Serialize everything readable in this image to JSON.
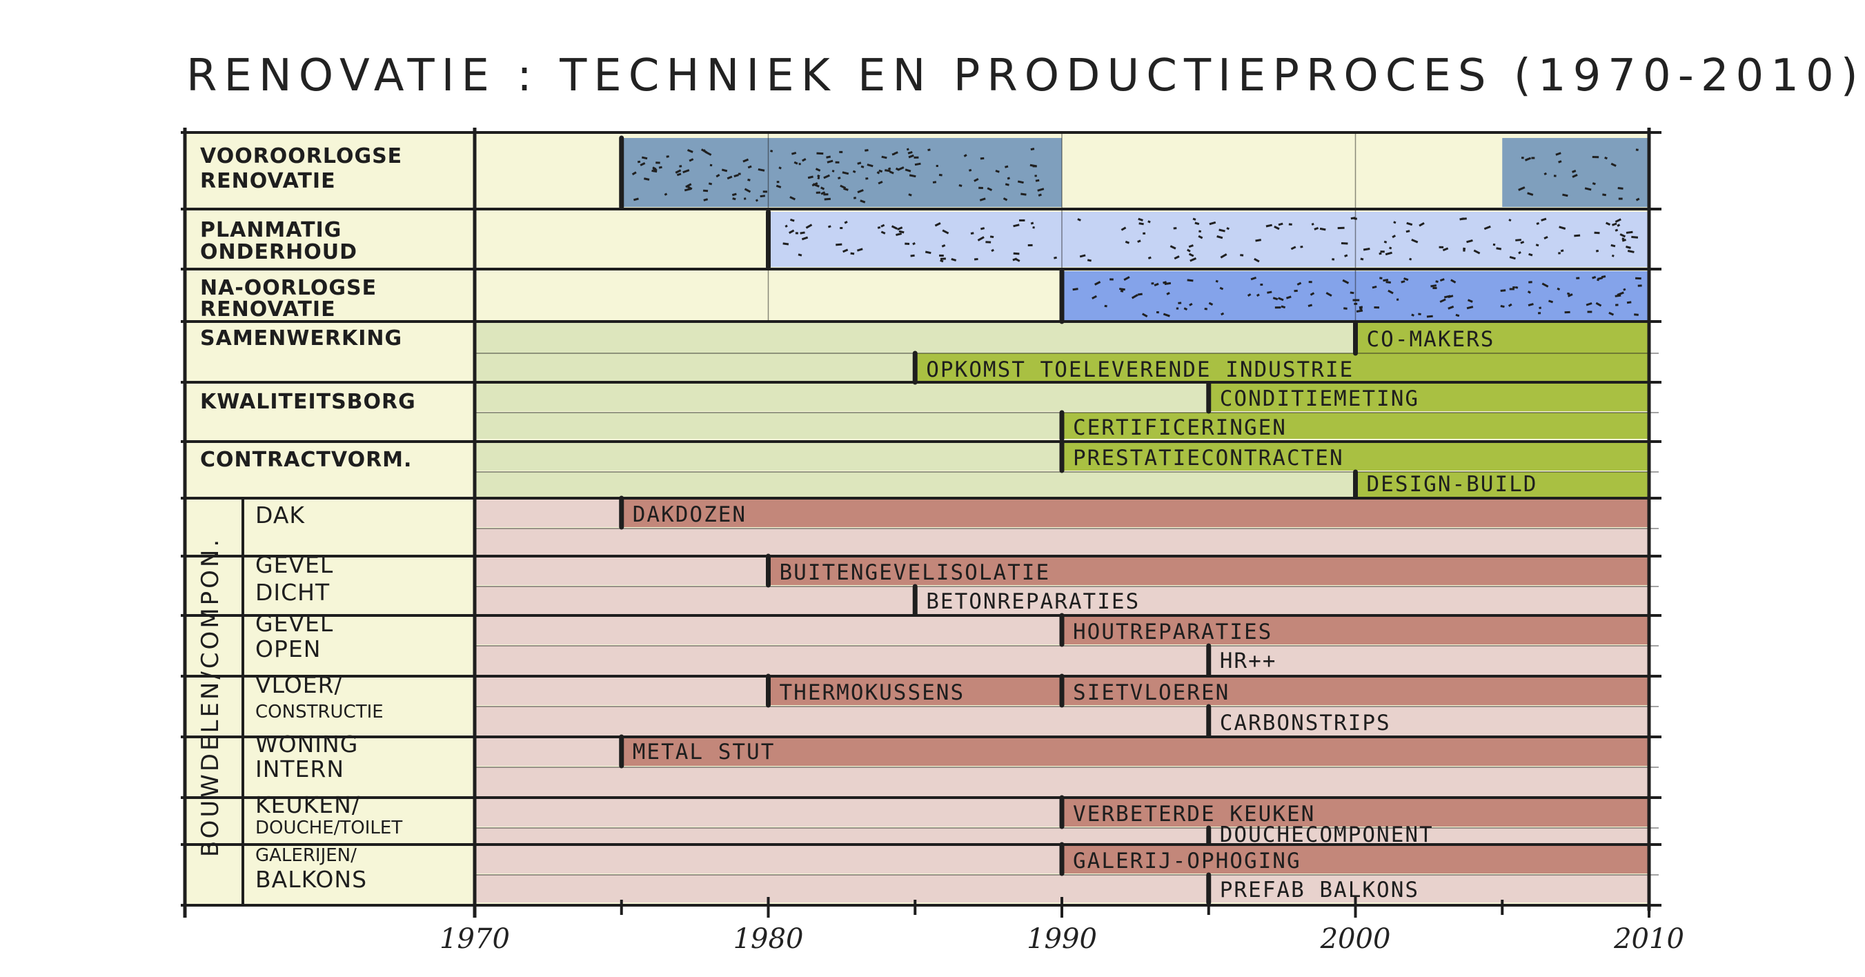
{
  "title": "RENOVATIE : TECHNIEK EN PRODUCTIEPROCES (1970-2010)",
  "axis": {
    "start": 1970,
    "end": 2010,
    "ticks": [
      "1970",
      "1980",
      "1990",
      "2000",
      "2010"
    ]
  },
  "colors": {
    "background": "#f6f6d8",
    "pre_war": "#7f9fbd",
    "planned_maintenance": "#c5d3f4",
    "post_war": "#84a3ea",
    "process_dark": "#a9c042",
    "process_light": "#dde6bd",
    "component_dark": "#c3877a",
    "component_light": "#e8d2cd",
    "ink": "#1e1e1e"
  },
  "rows": [
    {
      "label_lines": [
        "VOOROORLOGSE",
        "RENOVATIE"
      ]
    },
    {
      "label_lines": [
        "PLANMATIG",
        "ONDERHOUD"
      ]
    },
    {
      "label_lines": [
        "NA-OORLOGSE",
        "RENOVATIE"
      ]
    },
    {
      "label_lines": [
        "SAMENWERKING"
      ]
    },
    {
      "label_lines": [
        "KWALITEITSBORG"
      ]
    },
    {
      "label_lines": [
        "CONTRACTVORM."
      ]
    }
  ],
  "component_group_label": "BOUWDELEN/COMPON.",
  "components": [
    {
      "label_lines": [
        "DAK"
      ]
    },
    {
      "label_lines": [
        "GEVEL",
        "DICHT"
      ]
    },
    {
      "label_lines": [
        "GEVEL",
        "OPEN"
      ]
    },
    {
      "label_lines": [
        "VLOER/",
        "CONSTRUCTIE"
      ]
    },
    {
      "label_lines": [
        "WONING",
        "INTERN"
      ]
    },
    {
      "label_lines": [
        "KEUKEN/",
        "DOUCHE/TOILET"
      ]
    },
    {
      "label_lines": [
        "GALERIJEN/",
        "BALKONS"
      ]
    }
  ],
  "annotations": [
    "CO-MAKERS",
    "OPKOMST TOELEVERENDE INDUSTRIE",
    "CONDITIEMETING",
    "CERTIFICERINGEN",
    "PRESTATIECONTRACTEN",
    "DESIGN-BUILD",
    "DAKDOZEN",
    "BUITENGEVELISOLATIE",
    "BETONREPARATIES",
    "HOUTREPARATIES",
    "HR++",
    "THERMOKUSSENS",
    "SIETVLOEREN",
    "CARBONSTRIPS",
    "METAL STUT",
    "VERBETERDE KEUKEN",
    "DOUCHECOMPONENT",
    "GALERIJ-OPHOGING",
    "PREFAB BALKONS"
  ],
  "chart_data": {
    "type": "gantt",
    "x_range": [
      1970,
      2010
    ],
    "bars": [
      {
        "row": "VOOROORLOGSE RENOVATIE",
        "start": 1975,
        "end": 1990
      },
      {
        "row": "VOOROORLOGSE RENOVATIE",
        "start": 2005,
        "end": 2010
      },
      {
        "row": "PLANMATIG ONDERHOUD",
        "start": 1980,
        "end": 2010
      },
      {
        "row": "NA-OORLOGSE RENOVATIE",
        "start": 1990,
        "end": 2010
      },
      {
        "row": "SAMENWERKING",
        "label": "CO-MAKERS",
        "start": 2000,
        "end": 2010
      },
      {
        "row": "SAMENWERKING",
        "label": "OPKOMST TOELEVERENDE INDUSTRIE",
        "start": 1985,
        "end": 2010
      },
      {
        "row": "KWALITEITSBORG",
        "label": "CONDITIEMETING",
        "start": 1995,
        "end": 2010
      },
      {
        "row": "KWALITEITSBORG",
        "label": "CERTIFICERINGEN",
        "start": 1990,
        "end": 2010
      },
      {
        "row": "CONTRACTVORM.",
        "label": "PRESTATIECONTRACTEN",
        "start": 1990,
        "end": 2010
      },
      {
        "row": "CONTRACTVORM.",
        "label": "DESIGN-BUILD",
        "start": 2000,
        "end": 2010
      },
      {
        "row": "DAK",
        "label": "DAKDOZEN",
        "start": 1975,
        "end": 2010
      },
      {
        "row": "GEVEL DICHT",
        "label": "BUITENGEVELISOLATIE",
        "start": 1980,
        "end": 2010
      },
      {
        "row": "GEVEL DICHT",
        "label": "BETONREPARATIES",
        "start": 1985,
        "end": 2010
      },
      {
        "row": "GEVEL OPEN",
        "label": "HOUTREPARATIES",
        "start": 1990,
        "end": 2010
      },
      {
        "row": "GEVEL OPEN",
        "label": "HR++",
        "start": 1995,
        "end": 2010
      },
      {
        "row": "VLOER/CONSTRUCTIE",
        "label": "THERMOKUSSENS",
        "start": 1980,
        "end": 2010
      },
      {
        "row": "VLOER/CONSTRUCTIE",
        "label": "SIETVLOEREN",
        "start": 1990,
        "end": 2010
      },
      {
        "row": "VLOER/CONSTRUCTIE",
        "label": "CARBONSTRIPS",
        "start": 1995,
        "end": 2010
      },
      {
        "row": "WONING INTERN",
        "label": "METAL STUT",
        "start": 1975,
        "end": 2010
      },
      {
        "row": "KEUKEN/DOUCHE/TOILET",
        "label": "VERBETERDE KEUKEN",
        "start": 1990,
        "end": 2010
      },
      {
        "row": "KEUKEN/DOUCHE/TOILET",
        "label": "DOUCHECOMPONENT",
        "start": 1995,
        "end": 2010
      },
      {
        "row": "GALERIJEN/BALKONS",
        "label": "GALERIJ-OPHOGING",
        "start": 1990,
        "end": 2010
      },
      {
        "row": "GALERIJEN/BALKONS",
        "label": "PREFAB BALKONS",
        "start": 1995,
        "end": 2010
      }
    ]
  }
}
